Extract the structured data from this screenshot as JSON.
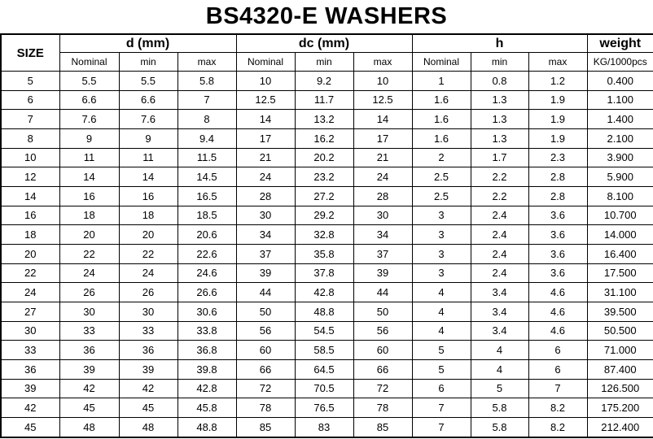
{
  "title": "BS4320-E WASHERS",
  "table": {
    "size_header": "SIZE",
    "groups": [
      {
        "label": "d (mm)",
        "subs": [
          "Nominal",
          "min",
          "max"
        ]
      },
      {
        "label": "dc (mm)",
        "subs": [
          "Nominal",
          "min",
          "max"
        ]
      },
      {
        "label": "h",
        "subs": [
          "Nominal",
          "min",
          "max"
        ]
      }
    ],
    "weight_header": {
      "label": "weight",
      "unit": "KG/1000pcs"
    },
    "rows": [
      [
        "5",
        "5.5",
        "5.5",
        "5.8",
        "10",
        "9.2",
        "10",
        "1",
        "0.8",
        "1.2",
        "0.400"
      ],
      [
        "6",
        "6.6",
        "6.6",
        "7",
        "12.5",
        "11.7",
        "12.5",
        "1.6",
        "1.3",
        "1.9",
        "1.100"
      ],
      [
        "7",
        "7.6",
        "7.6",
        "8",
        "14",
        "13.2",
        "14",
        "1.6",
        "1.3",
        "1.9",
        "1.400"
      ],
      [
        "8",
        "9",
        "9",
        "9.4",
        "17",
        "16.2",
        "17",
        "1.6",
        "1.3",
        "1.9",
        "2.100"
      ],
      [
        "10",
        "11",
        "11",
        "11.5",
        "21",
        "20.2",
        "21",
        "2",
        "1.7",
        "2.3",
        "3.900"
      ],
      [
        "12",
        "14",
        "14",
        "14.5",
        "24",
        "23.2",
        "24",
        "2.5",
        "2.2",
        "2.8",
        "5.900"
      ],
      [
        "14",
        "16",
        "16",
        "16.5",
        "28",
        "27.2",
        "28",
        "2.5",
        "2.2",
        "2.8",
        "8.100"
      ],
      [
        "16",
        "18",
        "18",
        "18.5",
        "30",
        "29.2",
        "30",
        "3",
        "2.4",
        "3.6",
        "10.700"
      ],
      [
        "18",
        "20",
        "20",
        "20.6",
        "34",
        "32.8",
        "34",
        "3",
        "2.4",
        "3.6",
        "14.000"
      ],
      [
        "20",
        "22",
        "22",
        "22.6",
        "37",
        "35.8",
        "37",
        "3",
        "2.4",
        "3.6",
        "16.400"
      ],
      [
        "22",
        "24",
        "24",
        "24.6",
        "39",
        "37.8",
        "39",
        "3",
        "2.4",
        "3.6",
        "17.500"
      ],
      [
        "24",
        "26",
        "26",
        "26.6",
        "44",
        "42.8",
        "44",
        "4",
        "3.4",
        "4.6",
        "31.100"
      ],
      [
        "27",
        "30",
        "30",
        "30.6",
        "50",
        "48.8",
        "50",
        "4",
        "3.4",
        "4.6",
        "39.500"
      ],
      [
        "30",
        "33",
        "33",
        "33.8",
        "56",
        "54.5",
        "56",
        "4",
        "3.4",
        "4.6",
        "50.500"
      ],
      [
        "33",
        "36",
        "36",
        "36.8",
        "60",
        "58.5",
        "60",
        "5",
        "4",
        "6",
        "71.000"
      ],
      [
        "36",
        "39",
        "39",
        "39.8",
        "66",
        "64.5",
        "66",
        "5",
        "4",
        "6",
        "87.400"
      ],
      [
        "39",
        "42",
        "42",
        "42.8",
        "72",
        "70.5",
        "72",
        "6",
        "5",
        "7",
        "126.500"
      ],
      [
        "42",
        "45",
        "45",
        "45.8",
        "78",
        "76.5",
        "78",
        "7",
        "5.8",
        "8.2",
        "175.200"
      ],
      [
        "45",
        "48",
        "48",
        "48.8",
        "85",
        "83",
        "85",
        "7",
        "5.8",
        "8.2",
        "212.400"
      ]
    ]
  }
}
